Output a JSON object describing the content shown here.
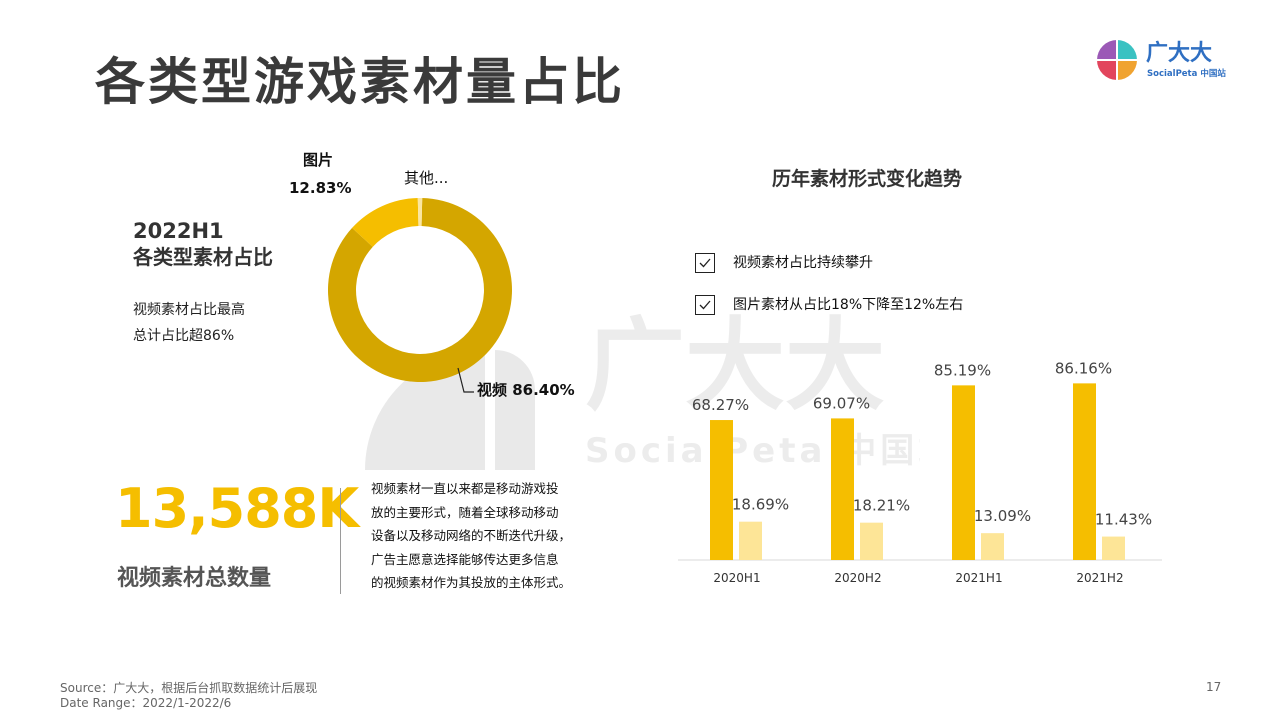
{
  "title": "各类型游戏素材量占比",
  "logo": {
    "name": "广大大",
    "sub": "SocialPeta 中国站",
    "icon": "brand-quad-circle-icon"
  },
  "watermark": {
    "main": "广大大",
    "sub": "SocialPeta 中国站"
  },
  "left_panel": {
    "heading_line1": "2022H1",
    "heading_line2": "各类型素材占比",
    "note_line1": "视频素材占比最高",
    "note_line2": "总计占比超86%"
  },
  "stats": {
    "big_number": "13,588K",
    "big_label": "视频素材总数量",
    "description": [
      "视频素材一直以来都是移动游戏投",
      "放的主要形式，随着全球移动移动",
      "设备以及移动网络的不断迭代升级，",
      "广告主愿意选择能够传达更多信息",
      "的视频素材作为其投放的主体形式。"
    ]
  },
  "trend": {
    "title": "历年素材形式变化趋势",
    "checks": [
      "视频素材占比持续攀升",
      "图片素材从占比18%下降至12%左右"
    ]
  },
  "footer": {
    "source": "Source：广大大，根据后台抓取数据统计后展现",
    "date_range": "Date Range：2022/1-2022/6",
    "page_number": "17"
  },
  "chart_data": [
    {
      "type": "pie",
      "donut": true,
      "slices": [
        {
          "name": "视频",
          "value": 86.4,
          "label": "视频 86.40%",
          "color": "#d4a600"
        },
        {
          "name": "图片",
          "value": 12.83,
          "label": "12.83%",
          "color": "#f5be00"
        },
        {
          "name": "其他...",
          "value": 0.77,
          "label": "其他...",
          "color": "#fbe6a0"
        }
      ]
    },
    {
      "type": "bar",
      "categories": [
        "2020H1",
        "2020H2",
        "2021H1",
        "2021H2"
      ],
      "series": [
        {
          "values": [
            68.27,
            69.07,
            85.19,
            86.16
          ],
          "labels": [
            "68.27%",
            "69.07%",
            "85.19%",
            "86.16%"
          ],
          "color": "#f5be00"
        },
        {
          "values": [
            18.69,
            18.21,
            13.09,
            11.43
          ],
          "labels": [
            "18.69%",
            "18.21%",
            "13.09%",
            "11.43%"
          ],
          "color": "#fde597"
        }
      ],
      "ylim": [
        0,
        100
      ],
      "grid": false
    }
  ]
}
